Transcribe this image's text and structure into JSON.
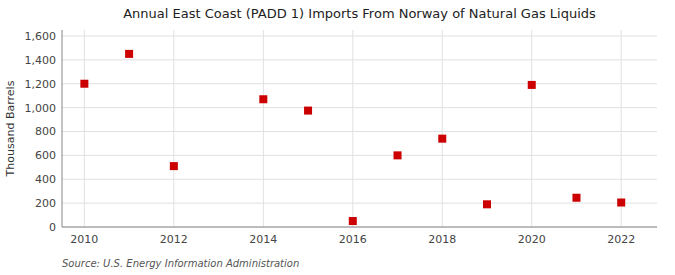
{
  "chart_data": {
    "type": "scatter",
    "title": "Annual East Coast (PADD 1) Imports From Norway of Natural Gas Liquids",
    "y_label": "Thousand Barrels",
    "annotation": "Source: U.S. Energy Information Administration",
    "x": [
      2010,
      2011,
      2012,
      2014,
      2015,
      2016,
      2017,
      2018,
      2019,
      2020,
      2021,
      2022
    ],
    "values": [
      1200,
      1450,
      510,
      1070,
      975,
      50,
      600,
      740,
      190,
      1190,
      245,
      205
    ],
    "xlim": [
      2009.5,
      2022.8
    ],
    "ylim": [
      0,
      1650
    ],
    "xticks": [
      2010,
      2012,
      2014,
      2016,
      2018,
      2020,
      2022
    ],
    "yticks": [
      0,
      200,
      400,
      600,
      800,
      {
        "value": 1000,
        "label": "1,000"
      },
      {
        "value": 1200,
        "label": "1,200"
      },
      {
        "value": 1400,
        "label": "1,400"
      },
      {
        "value": 1600,
        "label": "1,600"
      }
    ],
    "color": "#CC0000",
    "marker": "square",
    "grid": true
  }
}
